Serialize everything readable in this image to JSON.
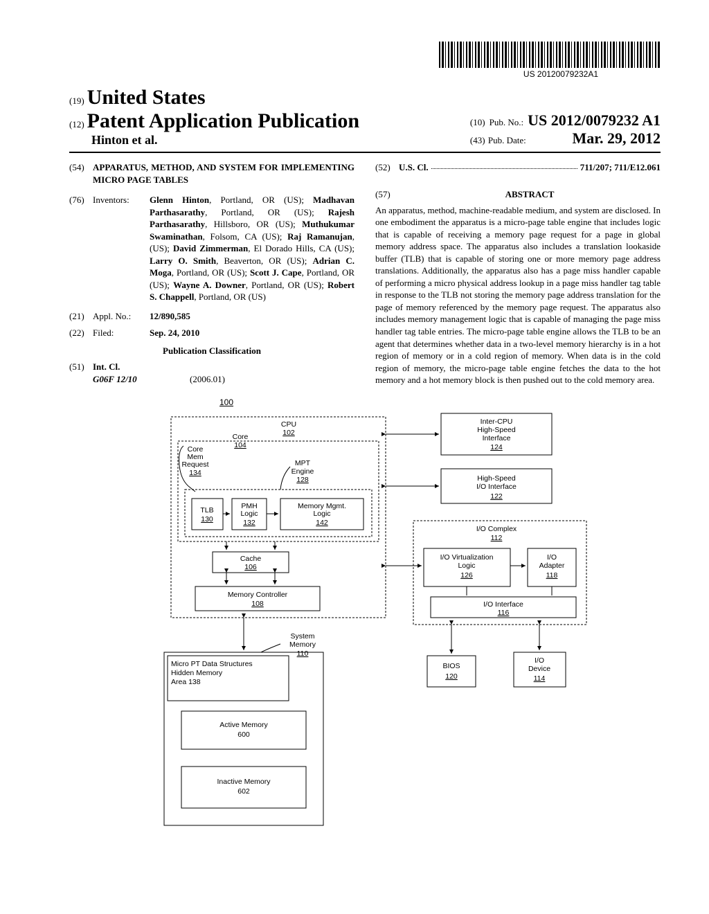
{
  "barcode_text": "US 20120079232A1",
  "header": {
    "prefix19": "(19)",
    "us": "United States",
    "prefix12": "(12)",
    "pap": "Patent Application Publication",
    "authors": "Hinton et al.",
    "prefix10": "(10)",
    "pubno_label": "Pub. No.:",
    "pubno": "US 2012/0079232 A1",
    "prefix43": "(43)",
    "pubdate_label": "Pub. Date:",
    "pubdate": "Mar. 29, 2012"
  },
  "left": {
    "num54": "(54)",
    "title": "APPARATUS, METHOD, AND SYSTEM FOR IMPLEMENTING MICRO PAGE TABLES",
    "num76": "(76)",
    "inventors_label": "Inventors:",
    "inventors_html": "Glenn Hinton|, Portland, OR (US); |Madhavan Parthasarathy|, Portland, OR (US); |Rajesh Parthasarathy|, Hillsboro, OR (US); |Muthukumar Swaminathan|, Folsom, CA (US); |Raj Ramanujan|, (US); |David Zimmerman|, El Dorado Hills, CA (US); |Larry O. Smith|, Beaverton, OR (US); |Adrian C. Moga|, Portland, OR (US); |Scott J. Cape|, Portland, OR (US); |Wayne A. Downer|, Portland, OR (US); |Robert S. Chappell|, Portland, OR (US)",
    "num21": "(21)",
    "applno_label": "Appl. No.:",
    "applno": "12/890,585",
    "num22": "(22)",
    "filed_label": "Filed:",
    "filed": "Sep. 24, 2010",
    "pubclass": "Publication Classification",
    "num51": "(51)",
    "intcl_label": "Int. Cl.",
    "intcl_code": "G06F 12/10",
    "intcl_year": "(2006.01)"
  },
  "right": {
    "num52": "(52)",
    "uscl_label": "U.S. Cl.",
    "uscl_value": "711/207; 711/E12.061",
    "num57": "(57)",
    "abstract_label": "ABSTRACT",
    "abstract": "An apparatus, method, machine-readable medium, and system are disclosed. In one embodiment the apparatus is a micro-page table engine that includes logic that is capable of receiving a memory page request for a page in global memory address space. The apparatus also includes a translation lookaside buffer (TLB) that is capable of storing one or more memory page address translations. Additionally, the apparatus also has a page miss handler capable of performing a micro physical address lookup in a page miss handler tag table in response to the TLB not storing the memory page address translation for the page of memory referenced by the memory page request. The apparatus also includes memory management logic that is capable of managing the page miss handler tag table entries. The micro-page table engine allows the TLB to be an agent that determines whether data in a two-level memory hierarchy is in a hot region of memory or in a cold region of memory. When data is in the cold region of memory, the micro-page table engine fetches the data to the hot memory and a hot memory block is then pushed out to the cold memory area."
  },
  "figure": {
    "ref": "100",
    "cpu": {
      "label": "CPU",
      "num": "102"
    },
    "core": {
      "label": "Core",
      "num": "104"
    },
    "core_mem": {
      "line1": "Core",
      "line2": "Mem",
      "line3": "Request",
      "num": "134"
    },
    "mpt": {
      "line1": "MPT",
      "line2": "Engine",
      "num": "128"
    },
    "tlb": {
      "label": "TLB",
      "num": "130"
    },
    "pmh": {
      "line1": "PMH",
      "line2": "Logic",
      "num": "132"
    },
    "mmgmt": {
      "line1": "Memory Mgmt.",
      "line2": "Logic",
      "num": "142"
    },
    "cache": {
      "label": "Cache",
      "num": "106"
    },
    "memctrl": {
      "label": "Memory Controller",
      "num": "108"
    },
    "sysmem": {
      "line1": "System",
      "line2": "Memory",
      "num": "110"
    },
    "micropt": {
      "line1": "Micro PT Data Structures",
      "line2": "Hidden Memory",
      "line3": "Area 138"
    },
    "active": {
      "label": "Active Memory",
      "num": "600"
    },
    "inactive": {
      "label": "Inactive Memory",
      "num": "602"
    },
    "intercpu": {
      "line1": "Inter-CPU",
      "line2": "High-Speed",
      "line3": "Interface",
      "num": "124"
    },
    "hsio": {
      "line1": "High-Speed",
      "line2": "I/O Interface",
      "num": "122"
    },
    "iocomplex": {
      "label": "I/O Complex",
      "num": "112"
    },
    "iovirt": {
      "line1": "I/O Virtualization",
      "line2": "Logic",
      "num": "126"
    },
    "ioadapter": {
      "line1": "I/O",
      "line2": "Adapter",
      "num": "118"
    },
    "iointerface": {
      "label": "I/O Interface",
      "num": "116"
    },
    "bios": {
      "label": "BIOS",
      "num": "120"
    },
    "iodevice": {
      "line1": "I/O",
      "line2": "Device",
      "num": "114"
    }
  },
  "colors": {
    "line": "#000000",
    "bg": "#ffffff"
  }
}
